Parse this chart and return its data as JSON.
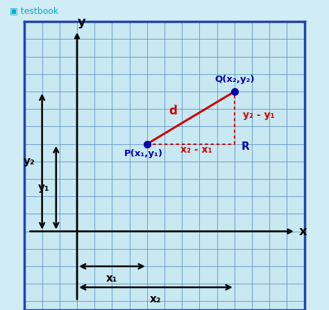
{
  "bg_outer": "#d0ecf5",
  "bg_plot": "#c8e8f2",
  "grid_color": "#5588bb",
  "border_color": "#2244aa",
  "axis_color": "#000000",
  "red_color": "#cc0000",
  "blue_color": "#1a1acc",
  "dark_blue": "#0000aa",
  "point_P": [
    4,
    5
  ],
  "point_Q": [
    9,
    8
  ],
  "point_R": [
    9,
    5
  ],
  "label_P": "P(x₁,y₁)",
  "label_Q": "Q(x₂,y₂)",
  "label_R": "R",
  "label_d": "d",
  "label_x2x1": "x₂ - x₁",
  "label_y2y1": "y₂ - y₁",
  "label_x": "x",
  "label_y": "y",
  "label_x1": "x₁",
  "label_x2": "x₂",
  "label_y1": "y₁",
  "label_y2": "y₂",
  "xlim": [
    -3,
    13
  ],
  "ylim": [
    -4.5,
    12
  ],
  "header_text": "testbook",
  "header_color": "#00aacc",
  "figsize": [
    4.74,
    4.47
  ],
  "dpi": 100
}
